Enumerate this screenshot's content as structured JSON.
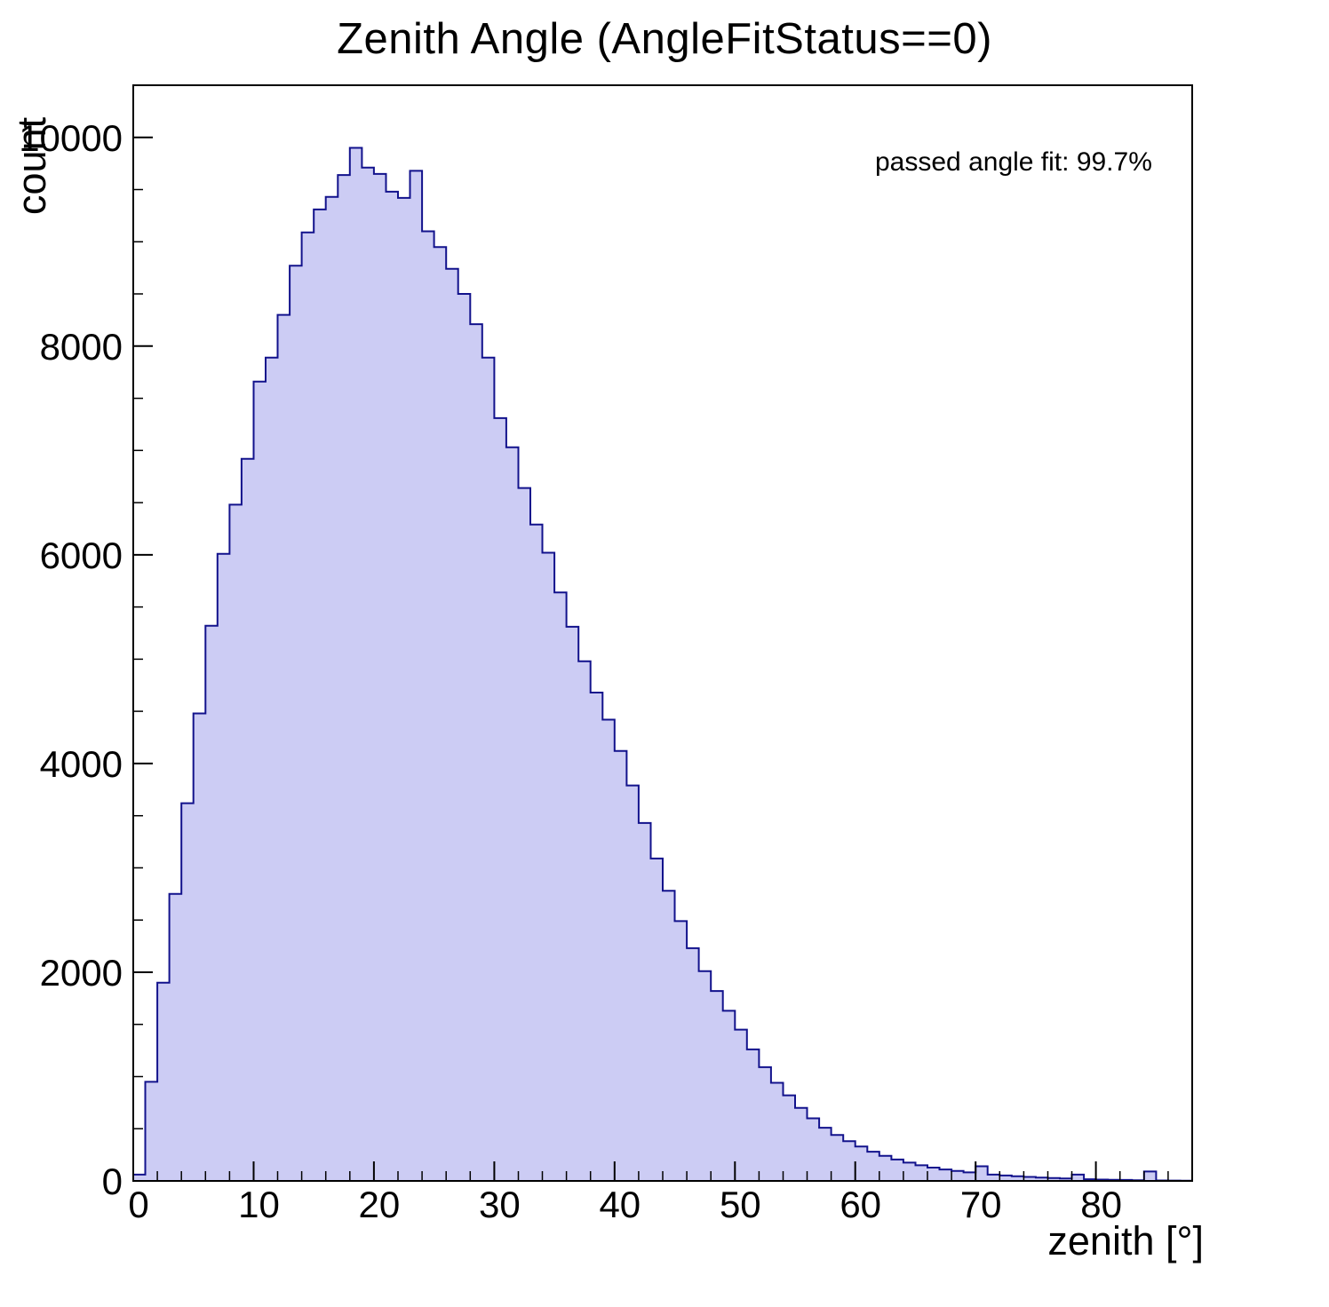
{
  "page": {
    "background": "#ffffff"
  },
  "chart_data": {
    "type": "bar",
    "chart_style": "filled-step-histogram",
    "title": "Zenith Angle (AngleFitStatus==0)",
    "xlabel": "zenith [°]",
    "ylabel": "count",
    "annotation": "passed angle fit: 99.7%",
    "xlim": [
      0,
      88
    ],
    "ylim": [
      0,
      10500
    ],
    "bin_start": 0,
    "bin_width": 1,
    "x_major_ticks": [
      0,
      10,
      20,
      30,
      40,
      50,
      60,
      70,
      80
    ],
    "y_major_ticks": [
      0,
      2000,
      4000,
      6000,
      8000,
      10000
    ],
    "x_minor_step": 2,
    "y_minor_step": 500,
    "grid": false,
    "legend": "none",
    "fill_color": "#ccccf4",
    "line_color": "#12128c",
    "frame_color": "#000000",
    "values": [
      60,
      950,
      1900,
      2750,
      3620,
      4480,
      5320,
      6010,
      6480,
      6920,
      7660,
      7890,
      8300,
      8770,
      9090,
      9310,
      9430,
      9640,
      9900,
      9710,
      9650,
      9480,
      9420,
      9680,
      9100,
      8950,
      8740,
      8500,
      8210,
      7890,
      7310,
      7030,
      6640,
      6290,
      6020,
      5640,
      5310,
      4980,
      4680,
      4420,
      4120,
      3790,
      3430,
      3090,
      2780,
      2490,
      2230,
      2010,
      1820,
      1630,
      1450,
      1260,
      1090,
      940,
      820,
      700,
      600,
      510,
      440,
      380,
      330,
      280,
      240,
      205,
      175,
      150,
      128,
      110,
      95,
      82,
      140,
      60,
      52,
      44,
      38,
      32,
      27,
      23,
      60,
      16,
      13,
      11,
      9,
      7,
      90,
      4,
      3,
      2
    ]
  }
}
